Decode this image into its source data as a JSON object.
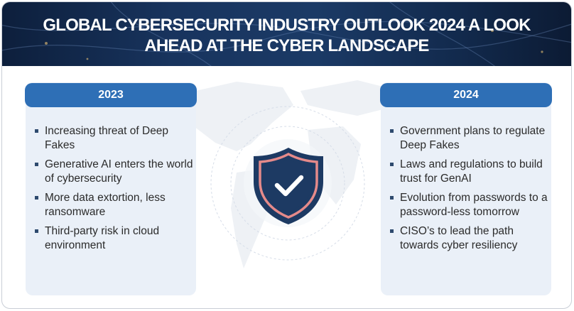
{
  "header": {
    "title": "GLOBAL CYBERSECURITY INDUSTRY OUTLOOK 2024 A LOOK AHEAD AT THE CYBER LANDSCAPE"
  },
  "columns": [
    {
      "year": "2023",
      "items": [
        "Increasing threat of Deep Fakes",
        "Generative AI enters the world of cybersecurity",
        "More data extortion, less ransomware",
        "Third-party risk in cloud environment"
      ]
    },
    {
      "year": "2024",
      "items": [
        "Government plans to regulate Deep Fakes",
        "Laws and regulations to build trust for GenAI",
        "Evolution from passwords to a password-less tomorrow",
        "CISO’s to lead the path towards cyber resiliency"
      ]
    }
  ],
  "center_icon": "shield-check-icon",
  "colors": {
    "header_bg": "#18345e",
    "pill": "#2e6fb6",
    "card_bg": "#eaf0f8",
    "shield_fill": "#1d3a63",
    "shield_outline": "#e58a8a",
    "text": "#2b2b2b"
  }
}
